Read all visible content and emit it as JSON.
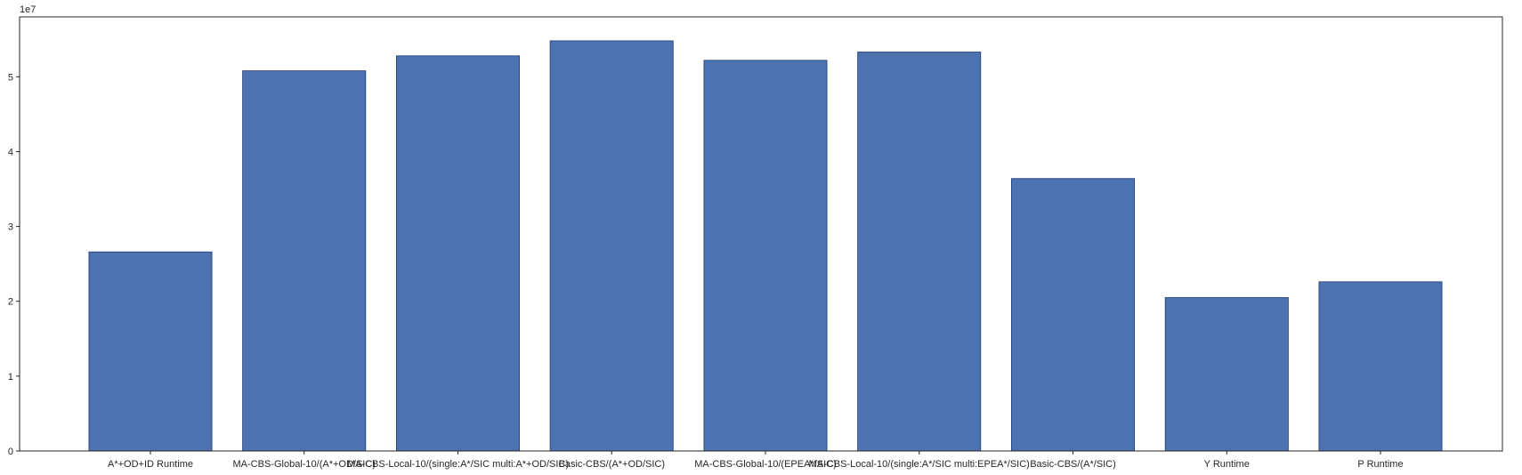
{
  "chart_data": {
    "type": "bar",
    "categories": [
      "A*+OD+ID Runtime",
      "MA-CBS-Global-10/(A*+OD/SIC)",
      "MA-CBS-Local-10/(single:A*/SIC multi:A*+OD/SIC)",
      "Basic-CBS/(A*+OD/SIC)",
      "MA-CBS-Global-10/(EPEA*/SIC)",
      "MA-CBS-Local-10/(single:A*/SIC multi:EPEA*/SIC)",
      "Basic-CBS/(A*/SIC)",
      "Y Runtime",
      "P Runtime"
    ],
    "values": [
      26600000,
      50800000,
      52800000,
      54800000,
      52200000,
      53300000,
      36400000,
      20500000,
      22600000
    ],
    "title": "",
    "xlabel": "",
    "ylabel": "",
    "ylim": [
      0,
      58000000
    ],
    "yticks": [
      0,
      10000000,
      20000000,
      30000000,
      40000000,
      50000000
    ],
    "ytick_labels": [
      "0",
      "1",
      "2",
      "3",
      "4",
      "5"
    ],
    "y_offset_label": "1e7",
    "grid": false,
    "legend": "none",
    "colors": {
      "bar_fill": "#4c72b0",
      "bar_edge": "#1f3b73",
      "axis": "#262626"
    }
  }
}
